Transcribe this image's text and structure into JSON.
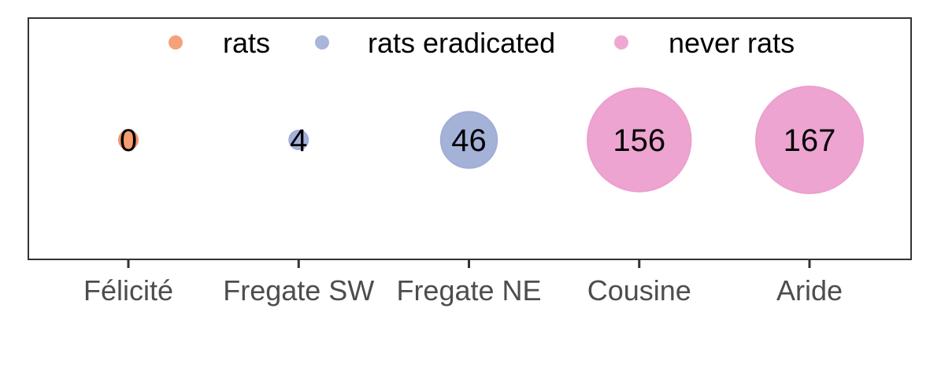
{
  "chart_data": {
    "type": "scatter",
    "title": "",
    "xlabel": "",
    "ylabel": "",
    "grid": false,
    "legend_position": "top-center",
    "categories": [
      "Félicité",
      "Fregate SW",
      "Fregate NE",
      "Cousine",
      "Aride"
    ],
    "values": [
      0,
      4,
      46,
      156,
      167
    ],
    "groups": [
      "rats",
      "rats eradicated",
      "rats eradicated",
      "never rats",
      "never rats"
    ],
    "series": [
      {
        "name": "rats",
        "color": "#f4976c"
      },
      {
        "name": "rats eradicated",
        "color": "#a0aed6"
      },
      {
        "name": "never rats",
        "color": "#ec9fcd"
      }
    ]
  }
}
